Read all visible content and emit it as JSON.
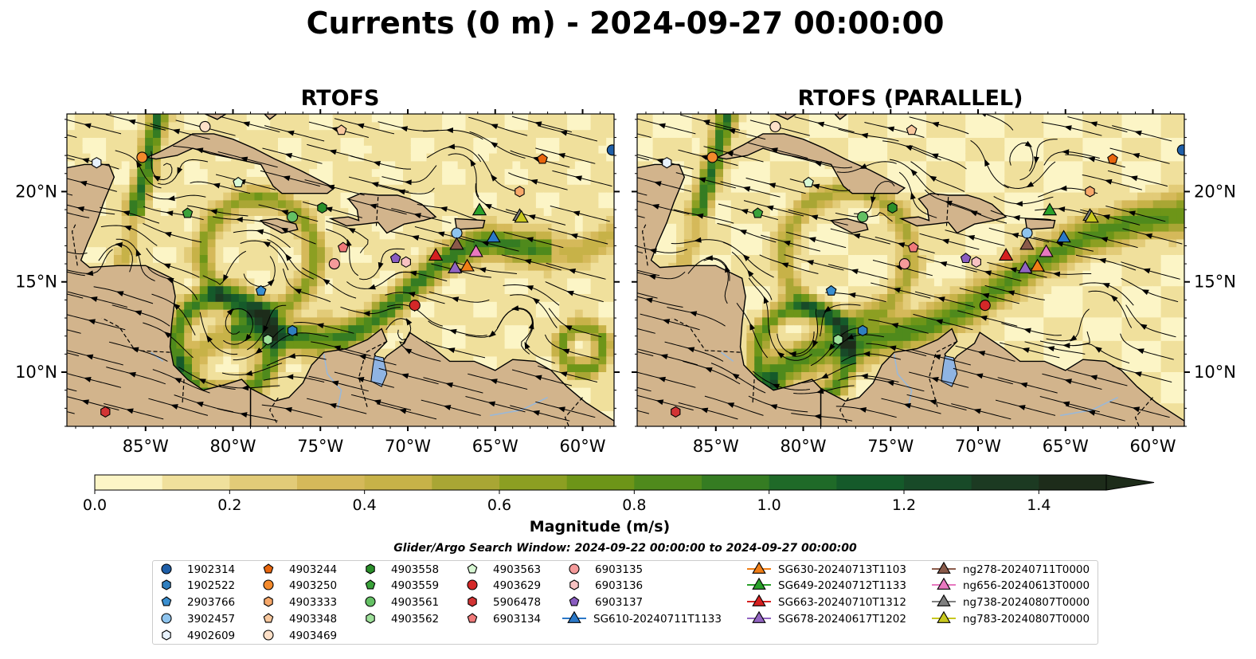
{
  "chart_data": {
    "type": "heatmap",
    "title": "Currents (0 m) - 2024-09-27 00:00:00",
    "panels": [
      {
        "title": "RTOFS"
      },
      {
        "title": "RTOFS (PARALLEL)"
      }
    ],
    "x_ticks": [
      {
        "value": -85,
        "label": "85°W"
      },
      {
        "value": -80,
        "label": "80°W"
      },
      {
        "value": -75,
        "label": "75°W"
      },
      {
        "value": -70,
        "label": "70°W"
      },
      {
        "value": -65,
        "label": "65°W"
      },
      {
        "value": -60,
        "label": "60°W"
      }
    ],
    "y_ticks": [
      {
        "value": 20,
        "label": "20°N"
      },
      {
        "value": 15,
        "label": "15°N"
      },
      {
        "value": 10,
        "label": "10°N"
      }
    ],
    "xlim": [
      -89.5,
      -58.2
    ],
    "ylim": [
      7.0,
      24.3
    ],
    "colorbar": {
      "label": "Magnitude (m/s)",
      "range": [
        0.0,
        1.5
      ],
      "extend": "max",
      "ticks": [
        {
          "value": 0.0,
          "label": "0.0"
        },
        {
          "value": 0.2,
          "label": "0.2"
        },
        {
          "value": 0.4,
          "label": "0.4"
        },
        {
          "value": 0.6,
          "label": "0.6"
        },
        {
          "value": 0.8,
          "label": "0.8"
        },
        {
          "value": 1.0,
          "label": "1.0"
        },
        {
          "value": 1.2,
          "label": "1.2"
        },
        {
          "value": 1.4,
          "label": "1.4"
        }
      ],
      "colors": [
        "#fcf5c6",
        "#f0e09c",
        "#e2cb78",
        "#d5b95a",
        "#c7b248",
        "#a9a634",
        "#8c9f22",
        "#6d9518",
        "#4f8a1c",
        "#357c22",
        "#1f6a28",
        "#155a2a",
        "#184a28",
        "#1c3a22",
        "#1d2c1a"
      ]
    },
    "search_window": "Glider/Argo Search Window: 2024-09-22 00:00:00 to 2024-09-27 00:00:00",
    "markers": [
      {
        "name": "1902314",
        "shape": "circle",
        "color": "#1f5fa8",
        "lon": -58.3,
        "lat": 22.3
      },
      {
        "name": "1902522",
        "shape": "hexagon",
        "color": "#2f7fc0",
        "lon": -76.6,
        "lat": 12.3
      },
      {
        "name": "2903766",
        "shape": "pentagon",
        "color": "#3a8fd0",
        "lon": -78.4,
        "lat": 14.5
      },
      {
        "name": "3902457",
        "shape": "circle",
        "color": "#8ec4ee",
        "lon": -67.2,
        "lat": 17.7
      },
      {
        "name": "4902609",
        "shape": "hexagon",
        "color": "#e8f2fc",
        "lon": -87.8,
        "lat": 21.6
      },
      {
        "name": "4903244",
        "shape": "pentagon",
        "color": "#e8660e",
        "lon": -62.3,
        "lat": 21.8
      },
      {
        "name": "4903250",
        "shape": "circle",
        "color": "#f48a2c",
        "lon": -85.2,
        "lat": 21.9
      },
      {
        "name": "4903333",
        "shape": "hexagon",
        "color": "#f7a86a",
        "lon": -63.6,
        "lat": 20.0
      },
      {
        "name": "4903348",
        "shape": "pentagon",
        "color": "#f8c89e",
        "lon": -73.8,
        "lat": 23.4
      },
      {
        "name": "4903469",
        "shape": "circle",
        "color": "#fde0c8",
        "lon": -81.6,
        "lat": 23.6
      },
      {
        "name": "4903558",
        "shape": "hexagon",
        "color": "#2a8f2a",
        "lon": -74.9,
        "lat": 19.1
      },
      {
        "name": "4903559",
        "shape": "pentagon",
        "color": "#3aa23a",
        "lon": -82.6,
        "lat": 18.8
      },
      {
        "name": "4903561",
        "shape": "circle",
        "color": "#64c064",
        "lon": -76.6,
        "lat": 18.6
      },
      {
        "name": "4903562",
        "shape": "hexagon",
        "color": "#9ee09a",
        "lon": -78.0,
        "lat": 11.8
      },
      {
        "name": "4903563",
        "shape": "pentagon",
        "color": "#d8f8d4",
        "lon": -79.7,
        "lat": 20.5
      },
      {
        "name": "4903629",
        "shape": "circle",
        "color": "#d42828",
        "lon": -69.6,
        "lat": 13.7
      },
      {
        "name": "5906478",
        "shape": "hexagon",
        "color": "#d23434",
        "lon": -87.3,
        "lat": 7.8
      },
      {
        "name": "6903134",
        "shape": "pentagon",
        "color": "#f07a7a",
        "lon": -73.7,
        "lat": 16.9
      },
      {
        "name": "6903135",
        "shape": "circle",
        "color": "#f49a9a",
        "lon": -74.2,
        "lat": 16.0
      },
      {
        "name": "6903136",
        "shape": "hexagon",
        "color": "#f8c2c2",
        "lon": -70.1,
        "lat": 16.1
      },
      {
        "name": "6903137",
        "shape": "pentagon",
        "color": "#8a5cc0",
        "lon": -70.7,
        "lat": 16.3
      },
      {
        "name": "SG610-20240711T1133",
        "shape": "triangle",
        "color": "#2a78c8",
        "lon": -65.1,
        "lat": 17.5
      },
      {
        "name": "SG630-20240713T1103",
        "shape": "triangle",
        "color": "#f07e16",
        "lon": -66.6,
        "lat": 15.9
      },
      {
        "name": "SG649-20240712T1133",
        "shape": "triangle",
        "color": "#2aa02a",
        "lon": -65.9,
        "lat": 19.0
      },
      {
        "name": "SG663-20240710T1312",
        "shape": "triangle",
        "color": "#d62020",
        "lon": -68.4,
        "lat": 16.5
      },
      {
        "name": "SG678-20240617T1202",
        "shape": "triangle",
        "color": "#9264c2",
        "lon": -67.3,
        "lat": 15.8
      },
      {
        "name": "ng278-20240711T0000",
        "shape": "triangle",
        "color": "#8a5a4a",
        "lon": -67.2,
        "lat": 17.1
      },
      {
        "name": "ng656-20240613T0000",
        "shape": "triangle",
        "color": "#e878c0",
        "lon": -66.1,
        "lat": 16.7
      },
      {
        "name": "ng738-20240807T0000",
        "shape": "triangle",
        "color": "#7f7f7f",
        "lon": -63.6,
        "lat": 18.7
      },
      {
        "name": "ng783-20240807T0000",
        "shape": "triangle",
        "color": "#c8c81e",
        "lon": -63.5,
        "lat": 18.6
      }
    ]
  }
}
